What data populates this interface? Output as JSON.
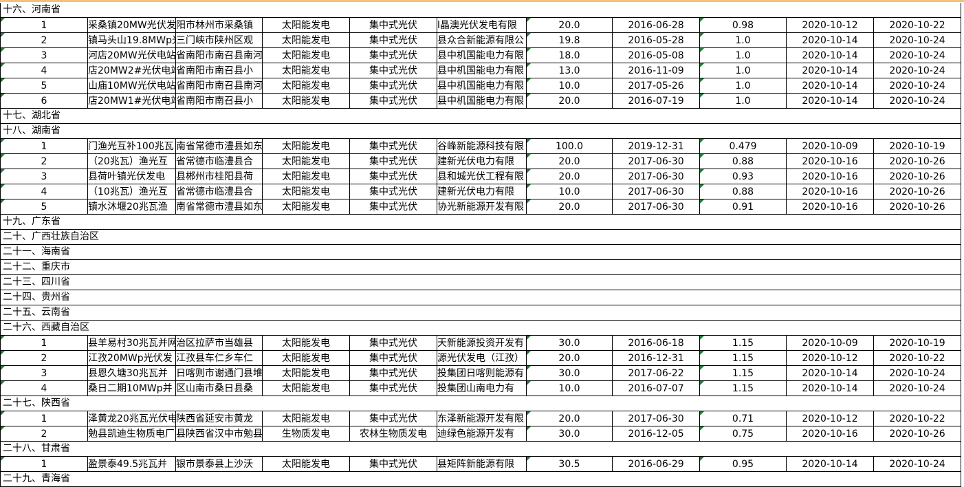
{
  "sheet": {
    "rows": [
      {
        "section": "十六、河南省"
      },
      {
        "cells": [
          "1",
          "采桑镇20MW光伏发",
          "阳市林州市采桑镇",
          "太阳能发电",
          "集中式光伏",
          "l晶澳光伏发电有限",
          "20.0",
          "2016-06-28",
          "0.98",
          "2020-10-12",
          "2020-10-22"
        ]
      },
      {
        "cells": [
          "2",
          "镇马头山19.8MWp光",
          "三门峡市陕州区观",
          "太阳能发电",
          "集中式光伏",
          "县众合新能源有限公",
          "19.8",
          "2016-05-28",
          "1.0",
          "2020-10-14",
          "2020-10-24"
        ]
      },
      {
        "cells": [
          "3",
          "河店20MW光伏电站",
          "省南阳市南召县南河",
          "太阳能发电",
          "集中式光伏",
          "县中机国能电力有限",
          "18.0",
          "2016-05-08",
          "1.0",
          "2020-10-14",
          "2020-10-24"
        ]
      },
      {
        "cells": [
          "4",
          "店20MW2#光伏电站",
          "省南阳市南召县小",
          "太阳能发电",
          "集中式光伏",
          "县中机国能电力有限",
          "13.0",
          "2016-11-09",
          "1.0",
          "2020-10-14",
          "2020-10-24"
        ]
      },
      {
        "cells": [
          "5",
          "山庙10MW光伏电站",
          "省南阳市南召县南河",
          "太阳能发电",
          "集中式光伏",
          "县中机国能电力有限",
          "10.0",
          "2017-05-26",
          "1.0",
          "2020-10-14",
          "2020-10-24"
        ]
      },
      {
        "cells": [
          "6",
          "店20MW1#光伏电站",
          "省南阳市南召县小",
          "太阳能发电",
          "集中式光伏",
          "县中机国能电力有限",
          "20.0",
          "2016-07-19",
          "1.0",
          "2020-10-14",
          "2020-10-24"
        ]
      },
      {
        "section": "十七、湖北省"
      },
      {
        "section": "十八、湖南省"
      },
      {
        "cells": [
          "1",
          "门渔光互补100兆瓦",
          "南省常德市澧县如东",
          "太阳能发电",
          "集中式光伏",
          "谷峰新能源科技有限",
          "100.0",
          "2019-12-31",
          "0.479",
          "2020-10-09",
          "2020-10-19"
        ]
      },
      {
        "cells": [
          "2",
          "（20兆瓦）渔光互",
          "省常德市临澧县合",
          "太阳能发电",
          "集中式光伏",
          "建新光伏电力有限",
          "20.0",
          "2017-06-30",
          "0.88",
          "2020-10-16",
          "2020-10-26"
        ]
      },
      {
        "cells": [
          "3",
          "县荷叶镇光伏发电",
          "县郴州市桂阳县荷",
          "太阳能发电",
          "集中式光伏",
          "县和城光伏工程有限",
          "20.0",
          "2017-06-30",
          "0.93",
          "2020-10-16",
          "2020-10-26"
        ]
      },
      {
        "cells": [
          "4",
          "（10兆瓦）渔光互",
          "省常德市临澧县合",
          "太阳能发电",
          "集中式光伏",
          "建新光伏电力有限",
          "10.0",
          "2017-06-30",
          "0.88",
          "2020-10-16",
          "2020-10-26"
        ]
      },
      {
        "cells": [
          "5",
          "镇水沐堰20兆瓦渔",
          "南省常德市澧县如东",
          "太阳能发电",
          "集中式光伏",
          "协光新能源开发有限",
          "20.0",
          "2017-06-30",
          "0.91",
          "2020-10-16",
          "2020-10-26"
        ]
      },
      {
        "section": "十九、广东省"
      },
      {
        "section": "二十、广西壮族自治区"
      },
      {
        "section": "二十一、海南省"
      },
      {
        "section": "二十二、重庆市"
      },
      {
        "section": "二十三、四川省"
      },
      {
        "section": "二十四、贵州省"
      },
      {
        "section": "二十五、云南省"
      },
      {
        "section": "二十六、西藏自治区"
      },
      {
        "cells": [
          "1",
          "县羊易村30兆瓦并网",
          "治区拉萨市当雄县",
          "太阳能发电",
          "集中式光伏",
          "天新能源投资开发有",
          "30.0",
          "2016-06-18",
          "1.15",
          "2020-10-09",
          "2020-10-19"
        ]
      },
      {
        "cells": [
          "2",
          "江孜20MWp光伏发",
          "江孜县车仁乡车仁",
          "太阳能发电",
          "集中式光伏",
          "源光伏发电（江孜）",
          "20.0",
          "2016-12-31",
          "1.15",
          "2020-10-12",
          "2020-10-22"
        ]
      },
      {
        "cells": [
          "3",
          "县恩久塘30兆瓦并",
          "日喀则市谢通门县堆",
          "太阳能发电",
          "集中式光伏",
          "投集团日喀则能源有",
          "30.0",
          "2017-06-22",
          "1.15",
          "2020-10-14",
          "2020-10-24"
        ]
      },
      {
        "cells": [
          "4",
          "桑日二期10MWp并",
          "区山南市桑日县桑",
          "太阳能发电",
          "集中式光伏",
          "投集团山南电力有",
          "10.0",
          "2016-07-07",
          "1.15",
          "2020-10-14",
          "2020-10-24"
        ]
      },
      {
        "section": "二十七、陕西省"
      },
      {
        "cells": [
          "1",
          "泽黄龙20兆瓦光伏电",
          "陕西省延安市黄龙",
          "太阳能发电",
          "集中式光伏",
          "东泽新能源开发有限",
          "20.0",
          "2017-06-30",
          "0.71",
          "2020-10-12",
          "2020-10-22"
        ]
      },
      {
        "cells": [
          "2",
          "勉县凯迪生物质电厂",
          "县陕西省汉中市勉县",
          "生物质发电",
          "农林生物质发电",
          "迪绿色能源开发有",
          "30.0",
          "2016-12-05",
          "0.75",
          "2020-10-16",
          "2020-10-26"
        ]
      },
      {
        "section": "二十八、甘肃省"
      },
      {
        "cells": [
          "1",
          "盈景泰49.5兆瓦并",
          "银市景泰县上沙沃",
          "太阳能发电",
          "集中式光伏",
          "县矩阵新能源有限",
          "30.5",
          "2016-06-29",
          "0.95",
          "2020-10-14",
          "2020-10-24"
        ]
      },
      {
        "section": "二十九、青海省"
      }
    ]
  }
}
